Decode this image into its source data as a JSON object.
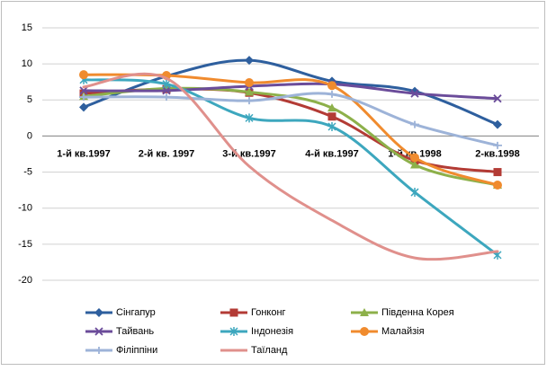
{
  "chart_data": {
    "type": "line",
    "categories": [
      "1-й кв.1997",
      "2-й кв. 1997",
      "3-й кв.1997",
      "4-й кв.1997",
      "1-й кв.1998",
      "2-кв.1998"
    ],
    "ylim": [
      -20,
      15
    ],
    "yticks": [
      -20,
      -15,
      -10,
      -5,
      0,
      5,
      10,
      15
    ],
    "grid": true,
    "smooth": true,
    "legend": "bottom",
    "series": [
      {
        "name": "Сінгапур",
        "color": "#2e5f9e",
        "marker": "diamond",
        "values": [
          4.0,
          8.3,
          10.5,
          7.6,
          6.2,
          1.6
        ]
      },
      {
        "name": "Гонконг",
        "color": "#b33b35",
        "marker": "square",
        "values": [
          5.9,
          6.5,
          6.0,
          2.7,
          -3.4,
          -5.0
        ]
      },
      {
        "name": "Південна Корея",
        "color": "#8db04a",
        "marker": "triangle",
        "values": [
          5.5,
          6.6,
          6.1,
          3.9,
          -4.0,
          -6.8
        ]
      },
      {
        "name": "Тайвань",
        "color": "#6b4c9a",
        "marker": "x",
        "values": [
          6.3,
          6.3,
          6.9,
          7.2,
          5.9,
          5.2
        ]
      },
      {
        "name": "Індонезія",
        "color": "#3da7be",
        "marker": "star",
        "values": [
          7.8,
          7.2,
          2.5,
          1.3,
          -7.8,
          -16.5
        ]
      },
      {
        "name": "Малайзія",
        "color": "#f08b2e",
        "marker": "circle",
        "values": [
          8.5,
          8.4,
          7.4,
          7.0,
          -3.0,
          -6.8
        ]
      },
      {
        "name": "Філіппіни",
        "color": "#9db3d8",
        "marker": "plus",
        "values": [
          5.4,
          5.4,
          4.9,
          5.8,
          1.6,
          -1.3
        ]
      },
      {
        "name": "Таїланд",
        "color": "#e0908c",
        "marker": "none",
        "values": [
          6.8,
          8.0,
          -4.2,
          -11.7,
          -16.9,
          -16.0
        ]
      }
    ]
  }
}
